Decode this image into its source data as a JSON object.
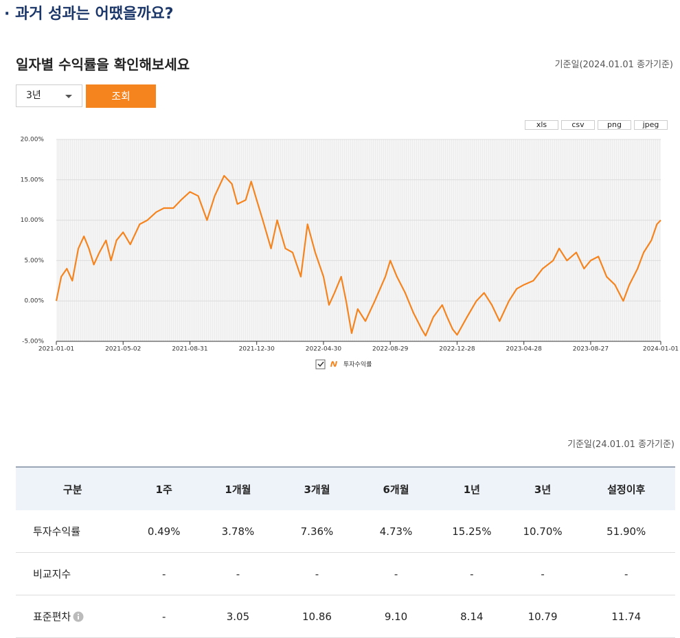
{
  "header": {
    "title": "· 과거 성과는 어땠을까요?"
  },
  "section": {
    "title": "일자별 수익률을 확인해보세요",
    "date_note": "기준일(2024.01.01 종가기준)",
    "period_select": "3년",
    "search_button": "조회",
    "exports": [
      "xls",
      "csv",
      "png",
      "jpeg"
    ]
  },
  "chart_data": {
    "type": "line",
    "x": [
      "2021-01-01",
      "2021-01-10",
      "2021-01-20",
      "2021-01-30",
      "2021-02-10",
      "2021-02-20",
      "2021-03-01",
      "2021-03-10",
      "2021-03-20",
      "2021-04-01",
      "2021-04-10",
      "2021-04-20",
      "2021-05-02",
      "2021-05-15",
      "2021-06-01",
      "2021-06-15",
      "2021-07-01",
      "2021-07-15",
      "2021-08-01",
      "2021-08-15",
      "2021-08-31",
      "2021-09-15",
      "2021-10-01",
      "2021-10-15",
      "2021-11-01",
      "2021-11-15",
      "2021-11-25",
      "2021-12-10",
      "2021-12-20",
      "2021-12-30",
      "2022-01-10",
      "2022-01-25",
      "2022-02-05",
      "2022-02-20",
      "2022-03-05",
      "2022-03-20",
      "2022-04-01",
      "2022-04-15",
      "2022-04-30",
      "2022-05-10",
      "2022-05-20",
      "2022-06-01",
      "2022-06-10",
      "2022-06-20",
      "2022-07-01",
      "2022-07-15",
      "2022-08-01",
      "2022-08-20",
      "2022-08-29",
      "2022-09-10",
      "2022-09-25",
      "2022-10-10",
      "2022-10-25",
      "2022-11-01",
      "2022-11-15",
      "2022-12-01",
      "2022-12-10",
      "2022-12-20",
      "2022-12-28",
      "2023-01-15",
      "2023-02-01",
      "2023-02-15",
      "2023-03-01",
      "2023-03-15",
      "2023-04-01",
      "2023-04-15",
      "2023-04-28",
      "2023-05-15",
      "2023-06-01",
      "2023-06-20",
      "2023-07-01",
      "2023-07-15",
      "2023-08-01",
      "2023-08-15",
      "2023-08-27",
      "2023-09-10",
      "2023-09-25",
      "2023-10-10",
      "2023-10-25",
      "2023-11-05",
      "2023-11-20",
      "2023-12-01",
      "2023-12-15",
      "2023-12-25",
      "2024-01-01"
    ],
    "series": [
      {
        "name": "투자수익률",
        "color": "#f5841f",
        "values": [
          0,
          3,
          4,
          2.5,
          6.5,
          8,
          6.5,
          4.5,
          6,
          7.5,
          5,
          7.5,
          8.5,
          7,
          9.5,
          10,
          11,
          11.5,
          11.5,
          12.5,
          13.5,
          13,
          10,
          13,
          15.5,
          14.5,
          12,
          12.5,
          14.8,
          12.5,
          10,
          6.5,
          10,
          6.5,
          6,
          3,
          9.5,
          6,
          3,
          -0.5,
          1,
          3,
          0,
          -4,
          -1,
          -2.5,
          0,
          3,
          5,
          3,
          1,
          -1.5,
          -3.5,
          -4.3,
          -2,
          -0.5,
          -2,
          -3.5,
          -4.2,
          -2,
          0,
          1,
          -0.5,
          -2.5,
          0,
          1.5,
          2,
          2.5,
          4,
          5,
          6.5,
          5,
          6,
          4,
          5,
          5.5,
          3,
          2,
          0,
          2,
          4,
          6,
          7.5,
          9.5,
          10
        ]
      }
    ],
    "xlim": [
      "2021-01-01",
      "2024-01-01"
    ],
    "xticks": [
      "2021-01-01",
      "2021-05-02",
      "2021-08-31",
      "2021-12-30",
      "2022-04-30",
      "2022-08-29",
      "2022-12-28",
      "2023-04-28",
      "2023-08-27",
      "2024-01-01"
    ],
    "ylim": [
      -5,
      20
    ],
    "yticks": [
      {
        "value": -5,
        "label": "-5.00%"
      },
      {
        "value": 0,
        "label": "0.00%"
      },
      {
        "value": 5,
        "label": "5.00%"
      },
      {
        "value": 10,
        "label": "10.00%"
      },
      {
        "value": 15,
        "label": "15.00%"
      },
      {
        "value": 20,
        "label": "20.00%"
      }
    ],
    "grid": true
  },
  "table": {
    "date_note": "기준일(24.01.01 종가기준)",
    "header": [
      "구분",
      "1주",
      "1개월",
      "3개월",
      "6개월",
      "1년",
      "3년",
      "설정이후"
    ],
    "rows": [
      [
        "투자수익률",
        "0.49%",
        "3.78%",
        "7.36%",
        "4.73%",
        "15.25%",
        "10.70%",
        "51.90%"
      ],
      [
        "비교지수",
        "-",
        "-",
        "-",
        "-",
        "-",
        "-",
        "-"
      ],
      [
        "표준편차",
        "-",
        "3.05",
        "10.86",
        "9.10",
        "8.14",
        "10.79",
        "11.74"
      ]
    ]
  }
}
